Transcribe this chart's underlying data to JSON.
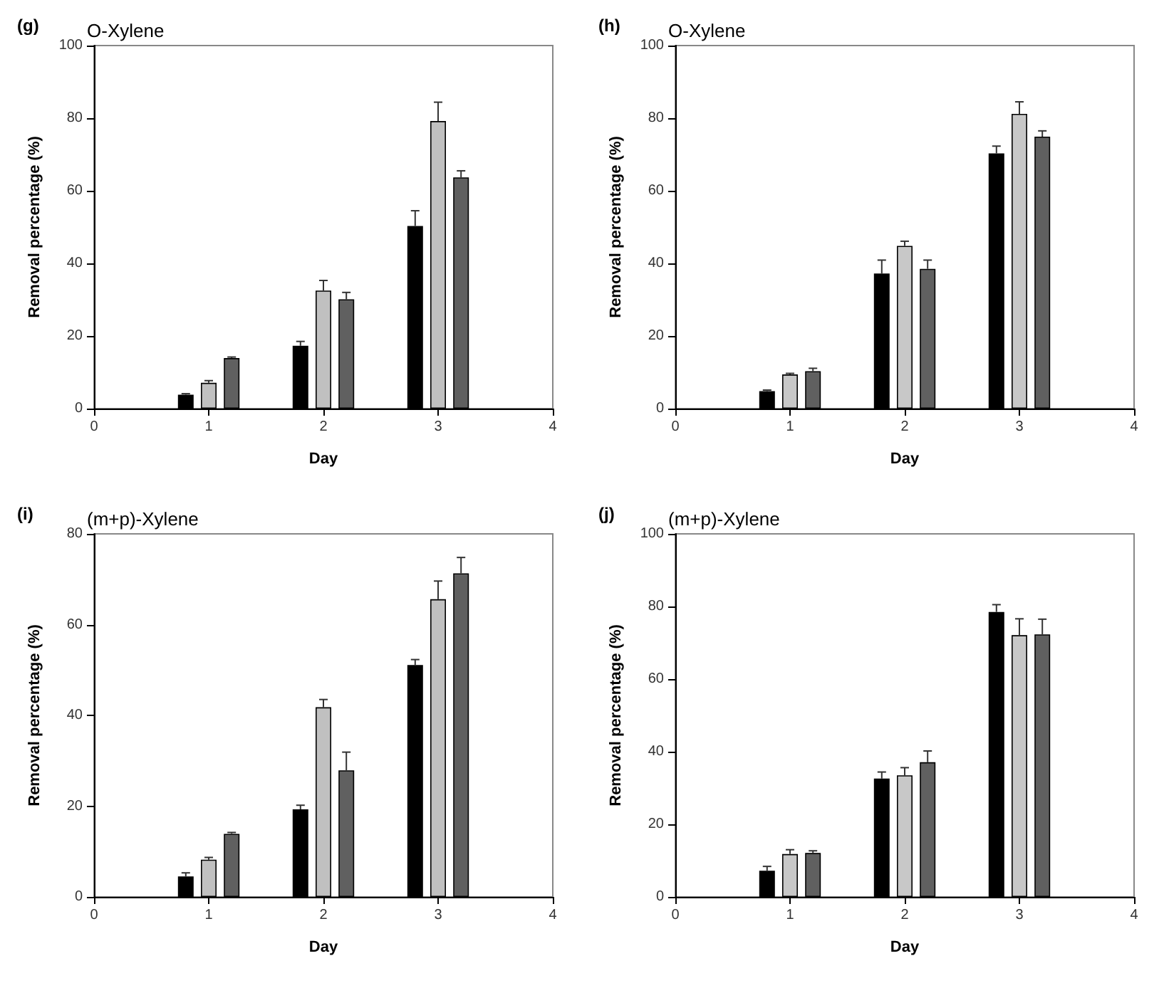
{
  "chart_data": [
    {
      "type": "bar",
      "title": "O-Xylene",
      "annotations": [
        "(g)"
      ],
      "xlabel": "Day",
      "ylabel": "Removal percentage (%)",
      "xlim": [
        0,
        4
      ],
      "xticks": [
        0,
        1,
        2,
        3,
        4
      ],
      "ylim": [
        0,
        100
      ],
      "yticks": [
        0,
        20,
        40,
        60,
        80,
        100
      ],
      "grid": false,
      "series": [
        {
          "color": "#000000",
          "x": [
            0.8,
            1.8,
            2.8
          ],
          "values": [
            3.8,
            17.3,
            50.3
          ],
          "errors": [
            0.3,
            1.2,
            4.2
          ]
        },
        {
          "color": "#c0c0c0",
          "x": [
            1,
            2,
            3
          ],
          "values": [
            7.1,
            32.5,
            79.2
          ],
          "errors": [
            0.6,
            2.8,
            5.2
          ]
        },
        {
          "color": "#606060",
          "x": [
            1.2,
            2.2,
            3.2
          ],
          "values": [
            13.9,
            30.1,
            63.7
          ],
          "errors": [
            0.3,
            1.9,
            1.8
          ]
        }
      ]
    },
    {
      "type": "bar",
      "title": "O-Xylene",
      "annotations": [
        "(h)"
      ],
      "xlabel": "Day",
      "ylabel": "Removal percentage (%)",
      "xlim": [
        0,
        4
      ],
      "xticks": [
        0,
        1,
        2,
        3,
        4
      ],
      "ylim": [
        0,
        100
      ],
      "yticks": [
        0,
        20,
        40,
        60,
        80,
        100
      ],
      "grid": false,
      "series": [
        {
          "color": "#000000",
          "x": [
            0.8,
            1.8,
            2.8
          ],
          "values": [
            4.8,
            37.2,
            70.3
          ],
          "errors": [
            0.3,
            3.7,
            2
          ]
        },
        {
          "color": "#c8c8c8",
          "x": [
            1,
            2,
            3
          ],
          "values": [
            9.4,
            44.8,
            81.2
          ],
          "errors": [
            0.3,
            1.3,
            3.3
          ]
        },
        {
          "color": "#606060",
          "x": [
            1.2,
            2.2,
            3.2
          ],
          "values": [
            10.3,
            38.5,
            74.9
          ],
          "errors": [
            0.8,
            2.4,
            1.6
          ]
        }
      ]
    },
    {
      "type": "bar",
      "title": "(m+p)-Xylene",
      "annotations": [
        "(i)"
      ],
      "xlabel": "Day",
      "ylabel": "Removal percentage (%)",
      "xlim": [
        0,
        4
      ],
      "xticks": [
        0,
        1,
        2,
        3,
        4
      ],
      "ylim": [
        0,
        80
      ],
      "yticks": [
        0,
        20,
        40,
        60,
        80
      ],
      "grid": false,
      "series": [
        {
          "color": "#000000",
          "x": [
            0.8,
            1.8,
            2.8
          ],
          "values": [
            4.5,
            19.3,
            51.1
          ],
          "errors": [
            0.8,
            0.9,
            1.2
          ]
        },
        {
          "color": "#c0c0c0",
          "x": [
            1,
            2,
            3
          ],
          "values": [
            8.2,
            41.8,
            65.6
          ],
          "errors": [
            0.5,
            1.7,
            4
          ]
        },
        {
          "color": "#606060",
          "x": [
            1.2,
            2.2,
            3.2
          ],
          "values": [
            13.9,
            27.9,
            71.3
          ],
          "errors": [
            0.3,
            4,
            3.5
          ]
        }
      ]
    },
    {
      "type": "bar",
      "title": "(m+p)-Xylene",
      "annotations": [
        "(j)"
      ],
      "xlabel": "Day",
      "ylabel": "Removal percentage (%)",
      "xlim": [
        0,
        4
      ],
      "xticks": [
        0,
        1,
        2,
        3,
        4
      ],
      "ylim": [
        0,
        100
      ],
      "yticks": [
        0,
        20,
        40,
        60,
        80,
        100
      ],
      "grid": false,
      "series": [
        {
          "color": "#000000",
          "x": [
            0.8,
            1.8,
            2.8
          ],
          "values": [
            7.2,
            32.6,
            78.5
          ],
          "errors": [
            1.2,
            1.8,
            2
          ]
        },
        {
          "color": "#c8c8c8",
          "x": [
            1,
            2,
            3
          ],
          "values": [
            11.8,
            33.5,
            72.1
          ],
          "errors": [
            1.2,
            2.1,
            4.5
          ]
        },
        {
          "color": "#606060",
          "x": [
            1.2,
            2.2,
            3.2
          ],
          "values": [
            12.1,
            37.1,
            72.3
          ],
          "errors": [
            0.6,
            3.1,
            4.2
          ]
        }
      ]
    }
  ]
}
